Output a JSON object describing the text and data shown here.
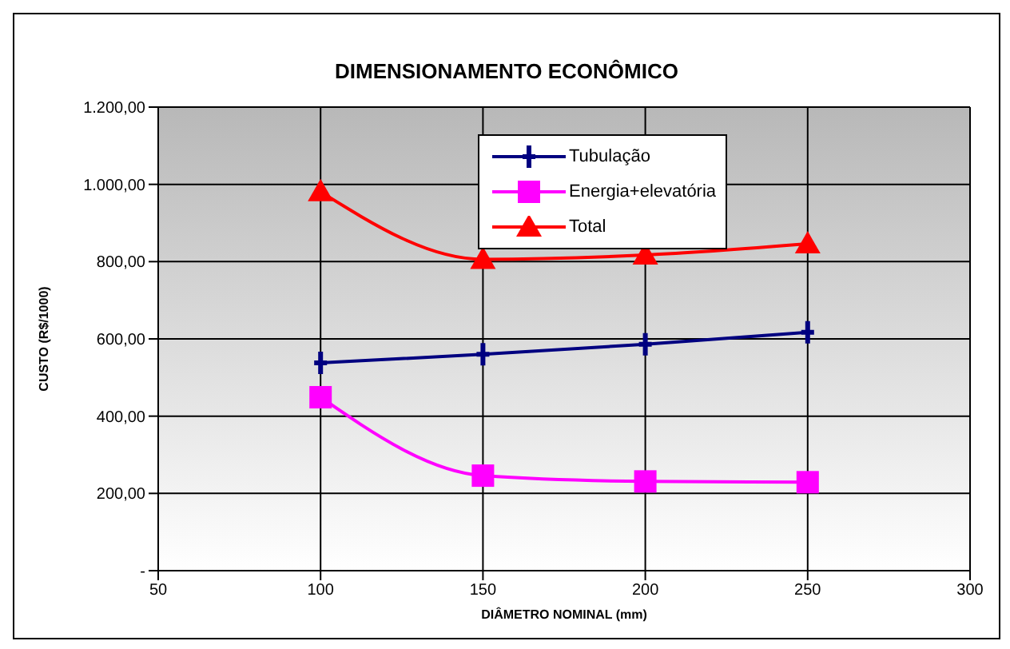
{
  "chart_data": {
    "type": "line",
    "title": "DIMENSIONAMENTO ECONÔMICO",
    "xlabel": "DIÂMETRO NOMINAL (mm)",
    "ylabel": "CUSTO (R$/1000)",
    "x": [
      100,
      150,
      200,
      250
    ],
    "series": [
      {
        "name": "Tubulação",
        "color": "#000080",
        "marker": "cross",
        "values": [
          538,
          560,
          586,
          617
        ]
      },
      {
        "name": "Energia+elevatória",
        "color": "#ff00ff",
        "marker": "square",
        "values": [
          449,
          246,
          231,
          229
        ]
      },
      {
        "name": "Total",
        "color": "#ff0000",
        "marker": "triangle",
        "values": [
          981,
          806,
          817,
          846
        ]
      }
    ],
    "xlim": [
      50,
      300
    ],
    "xticks": [
      50,
      100,
      150,
      200,
      250,
      300
    ],
    "ylim": [
      0,
      1200
    ],
    "yticks": [
      {
        "value": 0,
        "label": "-"
      },
      {
        "value": 200,
        "label": "200,00"
      },
      {
        "value": 400,
        "label": "400,00"
      },
      {
        "value": 600,
        "label": "600,00"
      },
      {
        "value": 800,
        "label": "800,00"
      },
      {
        "value": 1000,
        "label": "1.000,00"
      },
      {
        "value": 1200,
        "label": "1.200,00"
      }
    ],
    "grid": true,
    "legend": "top",
    "line_style": "solid"
  }
}
